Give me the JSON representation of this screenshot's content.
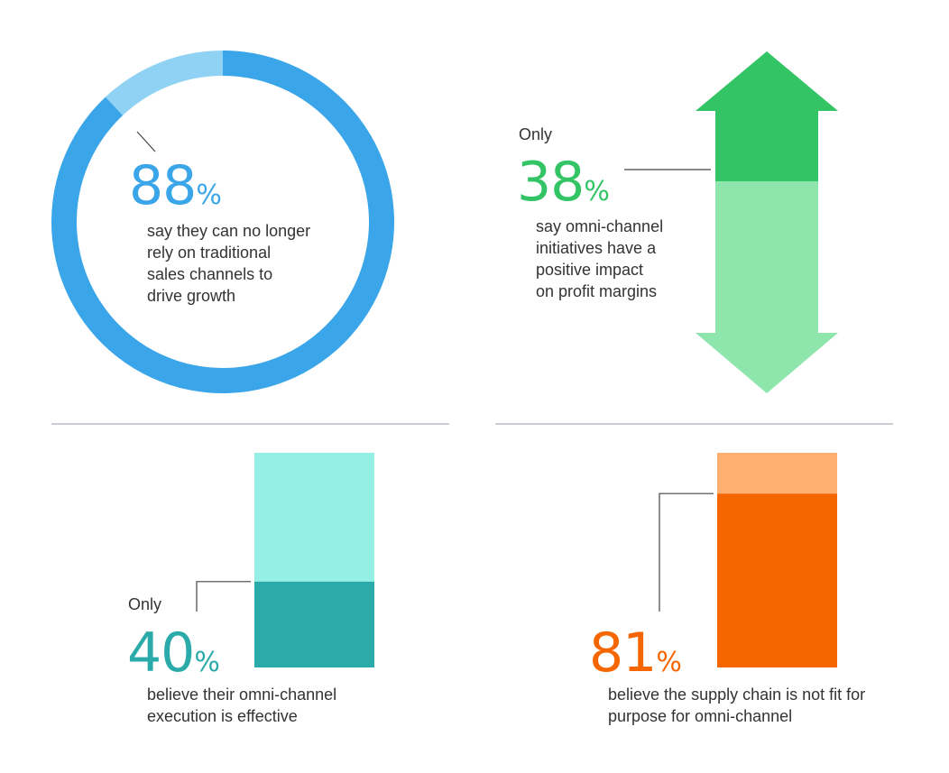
{
  "chart_data": [
    {
      "type": "pie",
      "values": [
        88,
        12
      ],
      "value": 88,
      "unit": "%",
      "description_lines": [
        "say they can no longer",
        "rely on traditional",
        "sales channels to",
        "drive growth"
      ],
      "colors": {
        "main": "#3aa5e8",
        "rest": "#90d2f4",
        "text": "#3aa5e8"
      }
    },
    {
      "type": "bar",
      "values": [
        38,
        62
      ],
      "value": 38,
      "prefix": "Only",
      "unit": "%",
      "description_lines": [
        "say omni-channel",
        "initiatives have a",
        "positive impact",
        "on profit margins"
      ],
      "colors": {
        "main": "#33c465",
        "rest": "#8fe6ad",
        "text": "#33c465"
      }
    },
    {
      "type": "bar",
      "values": [
        40,
        60
      ],
      "value": 40,
      "prefix": "Only",
      "unit": "%",
      "description_lines": [
        "believe their omni-channel",
        "execution is effective"
      ],
      "colors": {
        "main": "#2aaaa8",
        "rest": "#95efe4",
        "text": "#2aaaa8"
      }
    },
    {
      "type": "bar",
      "values": [
        81,
        19
      ],
      "value": 81,
      "unit": "%",
      "description_lines": [
        "believe the supply chain is not fit for",
        "purpose for omni-channel"
      ],
      "colors": {
        "main": "#f56600",
        "rest": "#ffb070",
        "text": "#f56600"
      }
    }
  ],
  "colors": {
    "divider": "#c9cfd4",
    "text": "#333333",
    "leader": "#444444"
  }
}
